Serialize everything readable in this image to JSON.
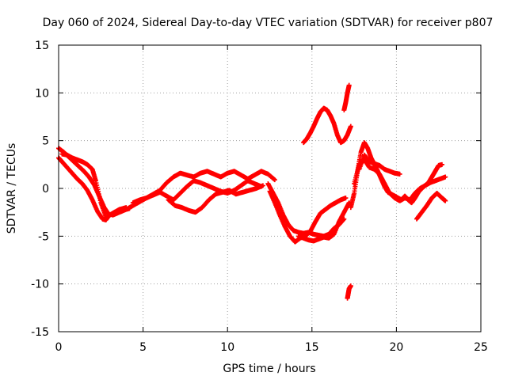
{
  "chart_data": {
    "type": "scatter",
    "title": "Day 060 of 2024, Sidereal Day-to-day VTEC variation (SDTVAR) for receiver p807",
    "xlabel": "GPS time / hours",
    "ylabel": "SDTVAR / TECUs",
    "xlim": [
      0,
      25
    ],
    "ylim": [
      -15,
      15
    ],
    "xticks": [
      0,
      5,
      10,
      15,
      20,
      25
    ],
    "yticks": [
      -15,
      -10,
      -5,
      0,
      5,
      10,
      15
    ],
    "xtick_labels": [
      "0",
      "5",
      "10",
      "15",
      "20",
      "25"
    ],
    "ytick_labels": [
      "-15",
      "-10",
      "-5",
      "0",
      "5",
      "10",
      "15"
    ],
    "grid": true,
    "marker": "plus",
    "color": "#ff0000",
    "series": [
      {
        "name": "seg1",
        "x": [
          0.0,
          0.2,
          0.5,
          0.8,
          1.1,
          1.4,
          1.7,
          2.0,
          2.3,
          2.6,
          2.8,
          3.0,
          3.3,
          3.6,
          4.0
        ],
        "y": [
          3.2,
          2.8,
          2.2,
          1.6,
          1.0,
          0.5,
          -0.2,
          -1.2,
          -2.4,
          -3.2,
          -3.3,
          -2.8,
          -2.5,
          -2.2,
          -2.0
        ]
      },
      {
        "name": "seg2",
        "x": [
          0.0,
          0.3,
          0.6,
          0.9,
          1.2,
          1.5,
          1.8,
          2.1,
          2.4,
          2.7,
          3.0,
          3.4,
          3.8,
          4.2
        ],
        "y": [
          4.2,
          3.8,
          3.3,
          2.8,
          2.3,
          1.8,
          1.2,
          0.4,
          -0.8,
          -2.0,
          -2.8,
          -2.6,
          -2.3,
          -2.1
        ]
      },
      {
        "name": "seg3",
        "x": [
          0.2,
          0.5,
          0.8,
          1.1,
          1.4,
          1.7,
          2.0,
          2.2,
          2.5,
          2.8
        ],
        "y": [
          3.6,
          3.5,
          3.2,
          3.0,
          2.8,
          2.5,
          2.0,
          0.8,
          -1.5,
          -3.0
        ]
      },
      {
        "name": "seg4",
        "x": [
          3.2,
          3.6,
          4.0,
          4.4,
          4.8,
          5.2,
          5.6,
          6.0,
          6.4,
          6.8,
          7.2,
          7.6,
          8.0,
          8.4,
          8.8,
          9.2,
          9.6,
          10.0,
          10.4,
          10.8,
          11.2,
          11.6,
          12.0
        ],
        "y": [
          -2.8,
          -2.5,
          -2.2,
          -1.8,
          -1.4,
          -1.0,
          -0.7,
          -0.4,
          -0.8,
          -1.2,
          -0.5,
          0.2,
          0.8,
          0.6,
          0.3,
          0.0,
          -0.3,
          -0.5,
          -0.2,
          0.3,
          0.8,
          0.5,
          0.2
        ]
      },
      {
        "name": "seg5",
        "x": [
          4.4,
          4.8,
          5.2,
          5.6,
          6.0,
          6.4,
          6.8,
          7.2,
          7.6,
          8.0,
          8.4,
          8.8,
          9.2,
          9.6,
          10.0,
          10.4,
          10.8,
          11.2,
          11.6,
          12.0,
          12.4,
          12.8
        ],
        "y": [
          -1.5,
          -1.2,
          -1.0,
          -0.6,
          -0.2,
          0.6,
          1.2,
          1.6,
          1.4,
          1.2,
          1.6,
          1.8,
          1.5,
          1.2,
          1.6,
          1.8,
          1.4,
          1.0,
          1.4,
          1.8,
          1.5,
          0.9
        ]
      },
      {
        "name": "seg6",
        "x": [
          6.5,
          6.9,
          7.3,
          7.7,
          8.1,
          8.5,
          8.9,
          9.3,
          9.7,
          10.1,
          10.5,
          10.9,
          11.3,
          11.7,
          12.1
        ],
        "y": [
          -1.2,
          -1.8,
          -2.0,
          -2.3,
          -2.5,
          -2.0,
          -1.2,
          -0.6,
          -0.4,
          -0.2,
          -0.6,
          -0.4,
          -0.2,
          0.0,
          0.3
        ]
      },
      {
        "name": "seg7",
        "x": [
          12.4,
          12.7,
          13.0,
          13.3,
          13.6,
          13.9,
          14.2,
          14.5,
          14.8,
          15.1,
          15.4,
          15.7,
          16.0,
          16.3,
          16.6,
          16.9
        ],
        "y": [
          0.5,
          -0.5,
          -1.5,
          -2.8,
          -3.8,
          -4.4,
          -4.6,
          -4.7,
          -4.6,
          -4.8,
          -4.9,
          -5.0,
          -4.8,
          -4.2,
          -3.8,
          -3.2
        ]
      },
      {
        "name": "seg8",
        "x": [
          12.5,
          12.8,
          13.1,
          13.4,
          13.7,
          14.0,
          14.3,
          14.6,
          14.9,
          15.2,
          15.5,
          15.8,
          16.1,
          16.4,
          16.7,
          17.0
        ],
        "y": [
          -0.3,
          -1.5,
          -2.8,
          -4.0,
          -5.0,
          -5.6,
          -5.2,
          -5.0,
          -4.5,
          -3.5,
          -2.6,
          -2.2,
          -1.8,
          -1.5,
          -1.2,
          -1.0
        ]
      },
      {
        "name": "seg9",
        "x": [
          14.2,
          14.5,
          14.8,
          15.1,
          15.4,
          15.7,
          16.0,
          16.3,
          16.6,
          16.9,
          17.2
        ],
        "y": [
          -5.0,
          -5.2,
          -5.4,
          -5.5,
          -5.3,
          -5.1,
          -5.2,
          -4.8,
          -3.5,
          -2.5,
          -1.5
        ]
      },
      {
        "name": "seg10",
        "x": [
          14.5,
          14.7,
          14.9,
          15.1,
          15.3,
          15.5,
          15.7,
          15.9,
          16.1,
          16.3,
          16.5,
          16.7,
          16.9,
          17.1,
          17.3
        ],
        "y": [
          4.8,
          5.2,
          5.8,
          6.5,
          7.3,
          8.0,
          8.4,
          8.2,
          7.6,
          6.8,
          5.6,
          4.8,
          5.0,
          5.6,
          6.5
        ]
      },
      {
        "name": "seg11",
        "x": [
          16.9,
          17.0,
          17.1,
          17.2
        ],
        "y": [
          8.2,
          9.0,
          10.0,
          10.8
        ]
      },
      {
        "name": "seg12",
        "x": [
          17.1,
          17.15,
          17.2,
          17.3
        ],
        "y": [
          -11.5,
          -11.0,
          -10.5,
          -10.2
        ]
      },
      {
        "name": "seg13",
        "x": [
          17.3,
          17.5,
          17.7,
          17.9,
          18.1,
          18.3,
          18.5,
          18.7,
          18.9,
          19.1,
          19.3,
          19.5,
          19.7,
          19.9,
          20.1,
          20.3,
          20.5,
          20.7,
          20.9,
          21.1,
          21.3,
          21.5,
          21.7,
          21.9,
          22.1,
          22.3,
          22.5,
          22.7
        ],
        "y": [
          -2.0,
          -0.5,
          1.8,
          3.8,
          4.8,
          4.2,
          3.2,
          2.5,
          1.8,
          1.0,
          0.2,
          -0.4,
          -0.6,
          -0.8,
          -1.0,
          -1.2,
          -0.8,
          -1.2,
          -1.5,
          -1.0,
          -0.4,
          0.0,
          0.3,
          0.6,
          1.2,
          1.8,
          2.4,
          2.5
        ]
      },
      {
        "name": "seg14",
        "x": [
          17.5,
          17.8,
          18.1,
          18.4,
          18.7,
          19.0,
          19.3,
          19.6,
          19.9,
          20.2,
          20.5,
          20.8,
          21.1,
          21.4,
          21.7,
          22.0,
          22.3,
          22.6,
          22.9
        ],
        "y": [
          0.5,
          2.5,
          3.0,
          2.2,
          2.0,
          1.5,
          0.5,
          -0.5,
          -1.0,
          -1.3,
          -1.0,
          -1.2,
          -0.5,
          0.0,
          0.3,
          0.6,
          0.8,
          1.0,
          1.2
        ]
      },
      {
        "name": "seg15",
        "x": [
          17.8,
          18.1,
          18.4,
          18.7,
          19.0,
          19.3,
          19.6,
          19.9,
          20.2
        ],
        "y": [
          2.0,
          3.5,
          2.8,
          2.6,
          2.4,
          2.0,
          1.8,
          1.6,
          1.5
        ]
      },
      {
        "name": "seg16",
        "x": [
          21.2,
          21.5,
          21.8,
          22.1,
          22.4,
          22.7,
          22.9
        ],
        "y": [
          -3.2,
          -2.5,
          -1.8,
          -1.0,
          -0.5,
          -1.0,
          -1.3
        ]
      }
    ]
  }
}
